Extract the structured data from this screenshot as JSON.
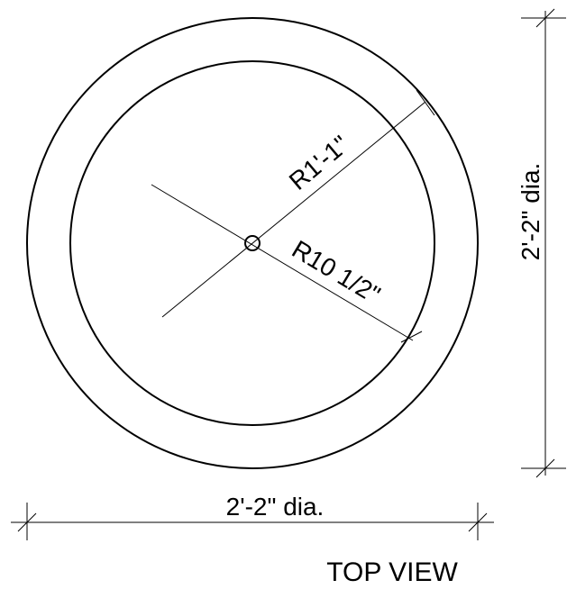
{
  "drawing": {
    "outer_radius_label": "R1'-1\"",
    "inner_radius_label": "R10 1/2\"",
    "vertical_dimension": "2'-2\" dia.",
    "horizontal_dimension": "2'-2\" dia.",
    "view_label": "TOP VIEW"
  }
}
